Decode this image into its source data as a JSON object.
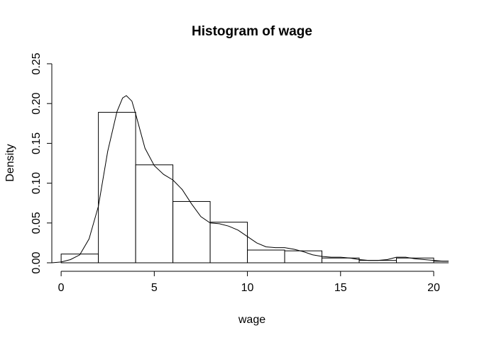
{
  "chart_data": {
    "type": "histogram",
    "title": "Histogram of wage",
    "xlabel": "wage",
    "ylabel": "Density",
    "xlim": [
      -0.5,
      20.8
    ],
    "ylim": [
      0.0,
      0.25
    ],
    "x_ticks": [
      0,
      5,
      10,
      15,
      20
    ],
    "x_tick_labels": [
      "0",
      "5",
      "10",
      "15",
      "20"
    ],
    "y_ticks": [
      0.0,
      0.05,
      0.1,
      0.15,
      0.2,
      0.25
    ],
    "y_tick_labels": [
      "0.00",
      "0.05",
      "0.10",
      "0.15",
      "0.20",
      "0.25"
    ],
    "bins": [
      {
        "x0": 0,
        "x1": 2,
        "density": 0.011
      },
      {
        "x0": 2,
        "x1": 4,
        "density": 0.189
      },
      {
        "x0": 4,
        "x1": 6,
        "density": 0.123
      },
      {
        "x0": 6,
        "x1": 8,
        "density": 0.077
      },
      {
        "x0": 8,
        "x1": 10,
        "density": 0.051
      },
      {
        "x0": 10,
        "x1": 12,
        "density": 0.016
      },
      {
        "x0": 12,
        "x1": 14,
        "density": 0.015
      },
      {
        "x0": 14,
        "x1": 16,
        "density": 0.006
      },
      {
        "x0": 16,
        "x1": 18,
        "density": 0.003
      },
      {
        "x0": 18,
        "x1": 20,
        "density": 0.006
      },
      {
        "x0": 20,
        "x1": 22,
        "density": 0.002
      }
    ],
    "density_curve": {
      "name": "density",
      "x": [
        -0.5,
        0.0,
        0.5,
        1.0,
        1.5,
        2.0,
        2.5,
        3.0,
        3.3,
        3.5,
        3.8,
        4.0,
        4.5,
        5.0,
        5.5,
        6.0,
        6.5,
        7.0,
        7.5,
        8.0,
        8.5,
        9.0,
        9.5,
        10.0,
        10.5,
        11.0,
        11.5,
        12.0,
        12.5,
        13.0,
        13.5,
        14.0,
        14.5,
        15.0,
        15.5,
        16.0,
        16.5,
        17.0,
        17.5,
        18.0,
        18.5,
        19.0,
        19.5,
        20.0,
        20.5,
        20.8
      ],
      "y": [
        0.0,
        0.001,
        0.004,
        0.01,
        0.03,
        0.071,
        0.14,
        0.19,
        0.207,
        0.21,
        0.203,
        0.187,
        0.144,
        0.122,
        0.111,
        0.104,
        0.092,
        0.074,
        0.058,
        0.05,
        0.049,
        0.046,
        0.041,
        0.033,
        0.025,
        0.02,
        0.019,
        0.019,
        0.017,
        0.014,
        0.01,
        0.008,
        0.007,
        0.007,
        0.006,
        0.004,
        0.003,
        0.003,
        0.004,
        0.007,
        0.007,
        0.005,
        0.004,
        0.003,
        0.002,
        0.002
      ]
    }
  }
}
